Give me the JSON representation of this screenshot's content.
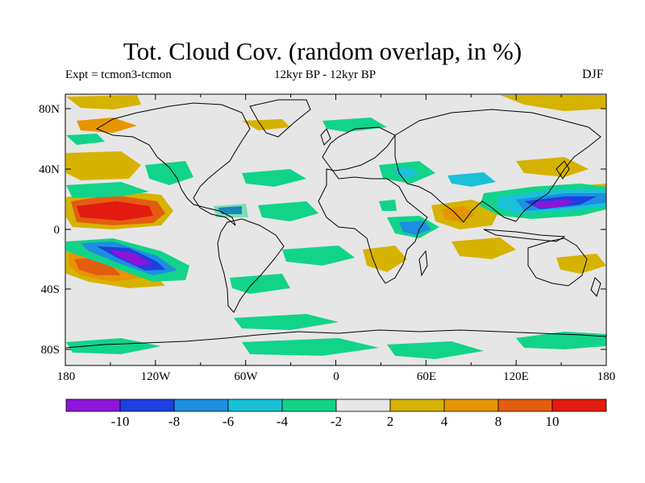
{
  "title": "Tot. Cloud Cov. (random overlap, in %)",
  "subtitle_left": "Expt = tcmon3-tcmon",
  "subtitle_center": "12kyr BP - 12kyr BP",
  "subtitle_right": "DJF",
  "lat_labels": [
    "80N",
    "40N",
    "0",
    "40S",
    "80S"
  ],
  "lon_labels": [
    "180",
    "120W",
    "60W",
    "0",
    "60E",
    "120E",
    "180"
  ],
  "colorbar": {
    "colors": [
      "#8b16d7",
      "#1f3fe0",
      "#1e8fe0",
      "#19c1d7",
      "#12d38a",
      "#e6e6e6",
      "#d6b300",
      "#e69500",
      "#e35d10",
      "#e31a10"
    ],
    "labels": [
      "-10",
      "-8",
      "-6",
      "-4",
      "-2",
      "2",
      "4",
      "8",
      "10"
    ]
  },
  "colors": {
    "neutral": "#e6e6e6",
    "coastline": "#000000"
  }
}
